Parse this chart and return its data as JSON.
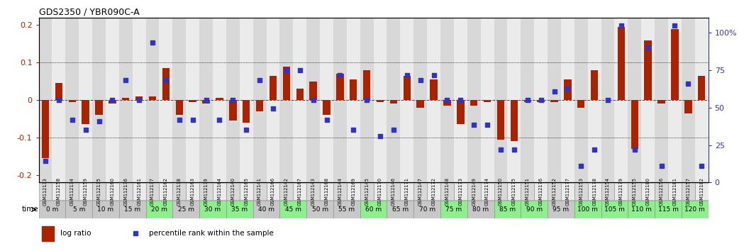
{
  "title": "GDS2350 / YBR090C-A",
  "gsm_labels": [
    "GSM112133",
    "GSM112158",
    "GSM112134",
    "GSM112159",
    "GSM112135",
    "GSM112160",
    "GSM112136",
    "GSM112161",
    "GSM112137",
    "GSM112162",
    "GSM112138",
    "GSM112163",
    "GSM112139",
    "GSM112164",
    "GSM112140",
    "GSM112165",
    "GSM112141",
    "GSM112166",
    "GSM112142",
    "GSM112167",
    "GSM112143",
    "GSM112168",
    "GSM112144",
    "GSM112169",
    "GSM112145",
    "GSM112170",
    "GSM112146",
    "GSM112171",
    "GSM112147",
    "GSM112172",
    "GSM112148",
    "GSM112173",
    "GSM112149",
    "GSM112174",
    "GSM112150",
    "GSM112175",
    "GSM112151",
    "GSM112176",
    "GSM112152",
    "GSM112177",
    "GSM112153",
    "GSM112178",
    "GSM112154",
    "GSM112179",
    "GSM112155",
    "GSM112180",
    "GSM112156",
    "GSM112181",
    "GSM112157",
    "GSM112182"
  ],
  "time_labels": [
    "0 m",
    "5 m",
    "10 m",
    "15 m",
    "20 m",
    "25 m",
    "30 m",
    "35 m",
    "40 m",
    "45 m",
    "50 m",
    "55 m",
    "60 m",
    "65 m",
    "70 m",
    "75 m",
    "80 m",
    "85 m",
    "90 m",
    "95 m",
    "100 m",
    "105 m",
    "110 m",
    "115 m",
    "120 m"
  ],
  "log_ratio": [
    -0.155,
    0.045,
    -0.005,
    -0.065,
    -0.04,
    -0.01,
    0.005,
    0.01,
    0.01,
    0.085,
    -0.04,
    -0.005,
    -0.01,
    0.005,
    -0.055,
    -0.06,
    -0.03,
    0.065,
    0.09,
    0.03,
    0.05,
    -0.04,
    0.07,
    0.055,
    0.08,
    -0.005,
    -0.01,
    0.065,
    -0.02,
    0.055,
    -0.015,
    -0.065,
    -0.015,
    -0.005,
    -0.105,
    -0.11,
    -0.005,
    -0.005,
    -0.005,
    0.055,
    -0.02,
    0.08,
    0.0,
    0.195,
    -0.13,
    0.16,
    -0.01,
    0.19,
    -0.035,
    0.065
  ],
  "percentile": [
    13,
    50,
    38,
    32,
    37,
    50,
    62,
    50,
    85,
    62,
    38,
    38,
    50,
    38,
    50,
    32,
    62,
    45,
    68,
    68,
    50,
    38,
    65,
    32,
    50,
    28,
    32,
    65,
    62,
    65,
    50,
    50,
    35,
    35,
    20,
    20,
    50,
    50,
    55,
    57,
    10,
    20,
    50,
    95,
    20,
    82,
    10,
    95,
    60,
    10
  ],
  "time_cell_colors": [
    "#d0d0d0",
    "#90ee90",
    "#d0d0d0",
    "#90ee90",
    "#90ee90",
    "#90ee90",
    "#d0d0d0",
    "#90ee90",
    "#d0d0d0",
    "#90ee90",
    "#d0d0d0",
    "#90ee90",
    "#d0d0d0",
    "#90ee90",
    "#d0d0d0",
    "#90ee90",
    "#d0d0d0",
    "#90ee90",
    "#90ee90",
    "#90ee90",
    "#d0d0d0",
    "#90ee90",
    "#90ee90",
    "#90ee90",
    "#90ee90"
  ],
  "bar_color": "#aa2200",
  "dot_color": "#3333bb",
  "ylim": [
    -0.22,
    0.22
  ],
  "y2lim": [
    0,
    110
  ],
  "yticks": [
    -0.2,
    -0.1,
    0.0,
    0.1,
    0.2
  ],
  "y2ticks": [
    0,
    25,
    50,
    75,
    100
  ],
  "dotted_lines": [
    -0.1,
    0.1
  ],
  "gsm_col_colors": [
    "#d8d8d8",
    "#ebebeb"
  ],
  "time_row_bg": "#90ee90",
  "legend_box_color_red": "#aa2200",
  "legend_box_color_blue": "#3333bb"
}
